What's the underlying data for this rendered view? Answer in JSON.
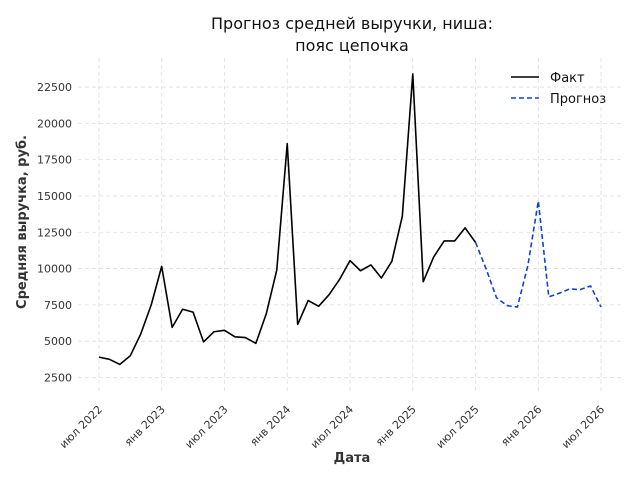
{
  "chart_data": {
    "type": "line",
    "title_line1": "Прогноз средней выручки, ниша:",
    "title_line2": "пояс цепочка",
    "xlabel": "Дата",
    "ylabel": "Средняя выручка, руб.",
    "grid": true,
    "legend_placement": "top-right",
    "x_ticks": [
      "июл 2022",
      "янв 2023",
      "июл 2023",
      "янв 2024",
      "июл 2024",
      "янв 2025",
      "июл 2025",
      "янв 2026",
      "июл 2026"
    ],
    "y_ticks": [
      "2500",
      "5000",
      "7500",
      "10000",
      "12500",
      "15000",
      "17500",
      "20000",
      "22500"
    ],
    "ylim": [
      1500,
      24500
    ],
    "xlim": [
      "2022-05",
      "2026-09"
    ],
    "series": [
      {
        "name": "Факт",
        "color": "#000000",
        "style": "solid",
        "x": [
          "2022-07",
          "2022-08",
          "2022-09",
          "2022-10",
          "2022-11",
          "2022-12",
          "2023-01",
          "2023-02",
          "2023-03",
          "2023-04",
          "2023-05",
          "2023-06",
          "2023-07",
          "2023-08",
          "2023-09",
          "2023-10",
          "2023-11",
          "2023-12",
          "2024-01",
          "2024-02",
          "2024-03",
          "2024-04",
          "2024-05",
          "2024-06",
          "2024-07",
          "2024-08",
          "2024-09",
          "2024-10",
          "2024-11",
          "2024-12",
          "2025-01",
          "2025-02",
          "2025-03",
          "2025-04",
          "2025-05",
          "2025-06",
          "2025-07"
        ],
        "values": [
          3900,
          3750,
          3400,
          4000,
          5500,
          7500,
          10150,
          5950,
          7200,
          7000,
          4950,
          5650,
          5750,
          5300,
          5250,
          4850,
          6900,
          9900,
          18600,
          6150,
          7800,
          7400,
          8200,
          9250,
          10550,
          9850,
          10250,
          9350,
          10500,
          13600,
          23400,
          9100,
          10800,
          11900,
          11900,
          12800,
          11800
        ]
      },
      {
        "name": "Прогноз",
        "color": "#1144cc",
        "style": "dashed",
        "x": [
          "2025-07",
          "2025-08",
          "2025-09",
          "2025-10",
          "2025-11",
          "2025-12",
          "2026-01",
          "2026-02",
          "2026-03",
          "2026-04",
          "2026-05",
          "2026-06",
          "2026-07"
        ],
        "values": [
          11800,
          10000,
          8000,
          7450,
          7350,
          10200,
          14650,
          8050,
          8300,
          8600,
          8550,
          8800,
          7350
        ]
      }
    ]
  }
}
